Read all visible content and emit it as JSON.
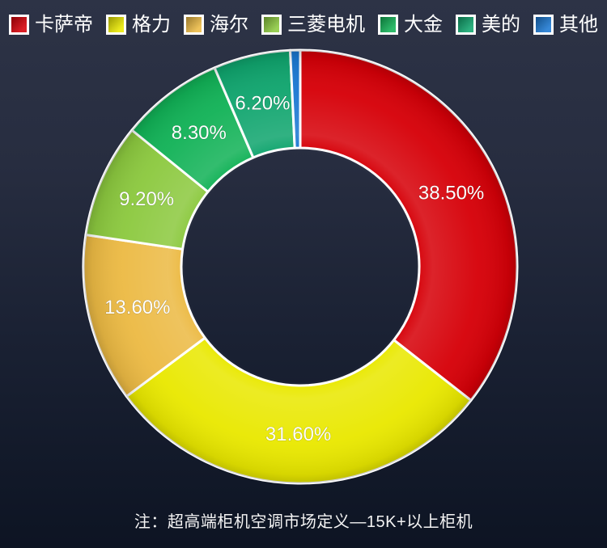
{
  "page": {
    "note": "注：超高端柜机空调市场定义—15K+以上柜机",
    "background_top_color": "#2d3346",
    "background_bottom_color": "#0d1423"
  },
  "chart_data": {
    "type": "pie",
    "subtype": "donut",
    "unit": "%",
    "legend_position": "top",
    "start_angle": "12-oclock-clockwise",
    "inner_radius_ratio": 0.55,
    "label_color": "#ffffff",
    "slice_border_color": "#ffffff",
    "series": [
      {
        "name": "卡萨帝",
        "value": 38.5,
        "label": "38.50%",
        "color": "#d60008"
      },
      {
        "name": "格力",
        "value": 31.6,
        "label": "31.60%",
        "color": "#e9e800"
      },
      {
        "name": "海尔",
        "value": 13.6,
        "label": "13.60%",
        "color": "#ecba44"
      },
      {
        "name": "三菱电机",
        "value": 9.2,
        "label": "9.20%",
        "color": "#8cc93f"
      },
      {
        "name": "大金",
        "value": 8.3,
        "label": "8.30%",
        "color": "#12b257"
      },
      {
        "name": "美的",
        "value": 6.2,
        "label": "6.20%",
        "color": "#10a56e"
      },
      {
        "name": "其他",
        "value": 0.8,
        "label": "",
        "color": "#1b78d2"
      }
    ]
  }
}
